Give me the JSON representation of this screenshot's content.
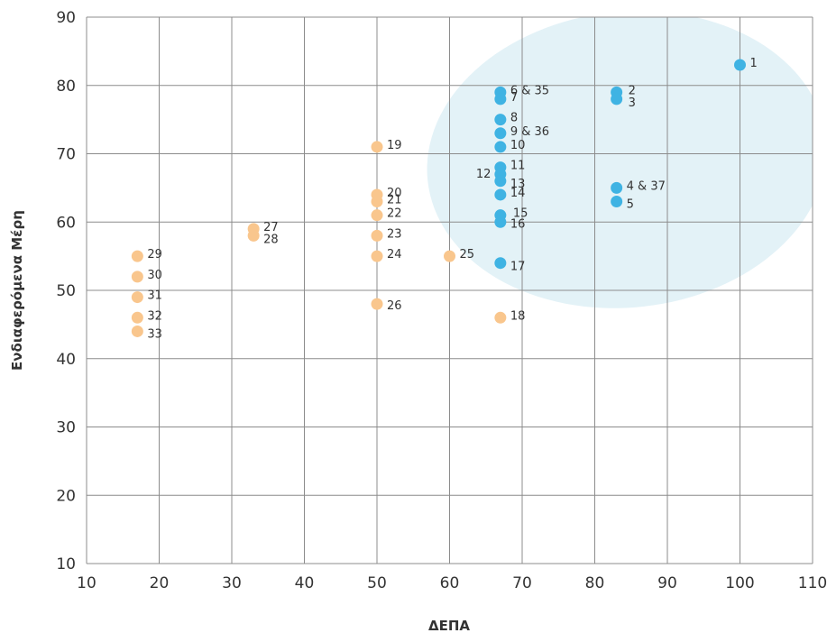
{
  "chart_data": {
    "type": "scatter",
    "title": "",
    "xlabel": "ΔΕΠΑ",
    "ylabel": "Ενδιαφερόμενα Μέρη",
    "xlim": [
      10,
      110
    ],
    "ylim": [
      10,
      90
    ],
    "x_ticks": [
      "10",
      "20",
      "30",
      "40",
      "50",
      "60",
      "70",
      "80",
      "90",
      "100",
      "110"
    ],
    "y_ticks": [
      "10",
      "20",
      "30",
      "40",
      "50",
      "60",
      "70",
      "80",
      "90"
    ],
    "grid": true,
    "highlight_region": {
      "color": "#e3f2f7"
    },
    "series": [
      {
        "color": "#3fb3e3",
        "points": [
          {
            "x": 100,
            "y": 83,
            "label": "1"
          },
          {
            "x": 83,
            "y": 79,
            "label": "2"
          },
          {
            "x": 83,
            "y": 78,
            "label": "3"
          },
          {
            "x": 83,
            "y": 65,
            "label": "4 & 37"
          },
          {
            "x": 83,
            "y": 63,
            "label": "5"
          },
          {
            "x": 67,
            "y": 79,
            "label": "6 & 35"
          },
          {
            "x": 67,
            "y": 78,
            "label": "7"
          },
          {
            "x": 67,
            "y": 75,
            "label": "8"
          },
          {
            "x": 67,
            "y": 73,
            "label": "9 & 36"
          },
          {
            "x": 67,
            "y": 71,
            "label": "10"
          },
          {
            "x": 67,
            "y": 68,
            "label": "11"
          },
          {
            "x": 67,
            "y": 67,
            "label": "12"
          },
          {
            "x": 67,
            "y": 66,
            "label": "13"
          },
          {
            "x": 67,
            "y": 64,
            "label": "14"
          },
          {
            "x": 67,
            "y": 61,
            "label": "15"
          },
          {
            "x": 67,
            "y": 60,
            "label": "16"
          },
          {
            "x": 67,
            "y": 54,
            "label": "17"
          }
        ]
      },
      {
        "color": "#f9c68d",
        "points": [
          {
            "x": 67,
            "y": 46,
            "label": "18"
          },
          {
            "x": 50,
            "y": 71,
            "label": "19"
          },
          {
            "x": 50,
            "y": 64,
            "label": "20"
          },
          {
            "x": 50,
            "y": 63,
            "label": "21"
          },
          {
            "x": 50,
            "y": 61,
            "label": "22"
          },
          {
            "x": 50,
            "y": 58,
            "label": "23"
          },
          {
            "x": 50,
            "y": 55,
            "label": "24"
          },
          {
            "x": 60,
            "y": 55,
            "label": "25"
          },
          {
            "x": 50,
            "y": 48,
            "label": "26"
          },
          {
            "x": 33,
            "y": 59,
            "label": "27"
          },
          {
            "x": 33,
            "y": 58,
            "label": "28"
          },
          {
            "x": 17,
            "y": 55,
            "label": "29"
          },
          {
            "x": 17,
            "y": 52,
            "label": "30"
          },
          {
            "x": 17,
            "y": 49,
            "label": "31"
          },
          {
            "x": 17,
            "y": 46,
            "label": "32"
          },
          {
            "x": 17,
            "y": 44,
            "label": "33"
          }
        ]
      }
    ]
  }
}
